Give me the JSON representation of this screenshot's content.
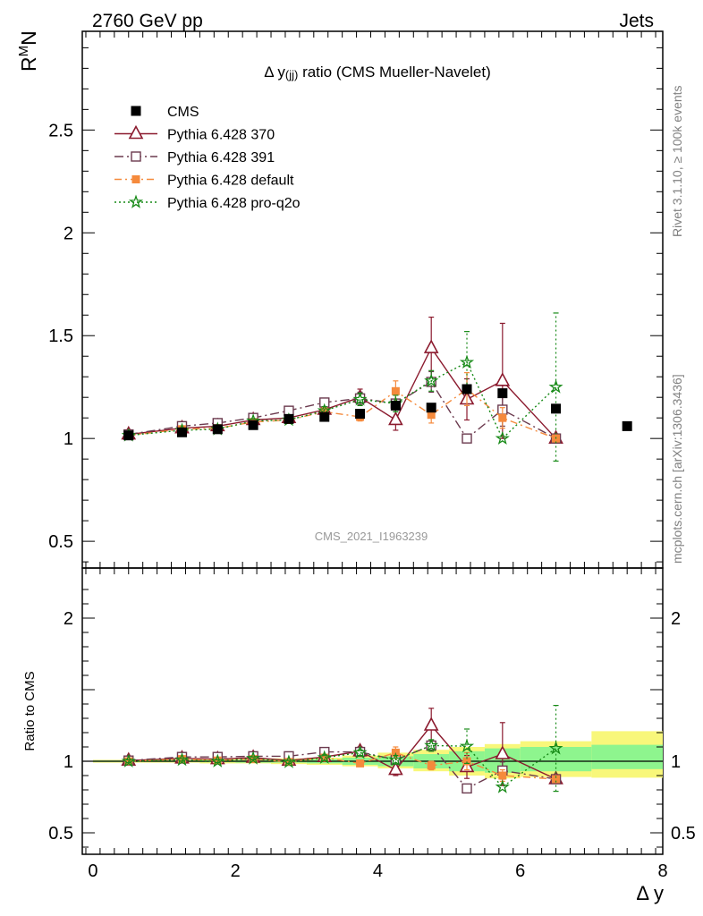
{
  "header": {
    "left": "2760 GeV pp",
    "right": "Jets"
  },
  "side_texts": {
    "rivet": "Rivet 3.1.10, ≥ 100k events",
    "mcplots": "mcplots.cern.ch [arXiv:1306.3436]"
  },
  "watermark": "CMS_2021_I1963239",
  "colors": {
    "cms": "#000000",
    "p370": "#8b1a2e",
    "p391": "#6b3a4e",
    "pdefault": "#f58a3c",
    "pq2o": "#178a17",
    "band_outer": "#f8f77a",
    "band_inner": "#8ef58e"
  },
  "chart_data": [
    {
      "type": "scatter",
      "panel": "main",
      "title": "Δ y(jj) ratio (CMS Mueller-Navelet)",
      "title_parts": {
        "a": "Δ y",
        "b": "(jj)",
        "c": " ratio (CMS Mueller-Navelet)"
      },
      "ylabel": "R",
      "ylabel_sup": "M",
      "ylabel_sub": "N",
      "xlim": [
        -0.15,
        8.0
      ],
      "ylim": [
        0.37,
        2.98
      ],
      "yticks": [
        0.5,
        1,
        1.5,
        2,
        2.5
      ],
      "ytick_labels": [
        "0.5",
        "1",
        "1.5",
        "2",
        "2.5"
      ],
      "legend_position": "top-left",
      "series": [
        {
          "name": "CMS",
          "style": "data",
          "x": [
            0.5,
            1.25,
            1.75,
            2.25,
            2.75,
            3.25,
            3.75,
            4.25,
            4.75,
            5.25,
            5.75,
            6.5,
            7.5
          ],
          "y": [
            1.015,
            1.03,
            1.045,
            1.065,
            1.095,
            1.105,
            1.12,
            1.16,
            1.15,
            1.24,
            1.22,
            1.145,
            1.06
          ]
        },
        {
          "name": "Pythia 6.428 370",
          "style": "p370",
          "x": [
            0.5,
            1.25,
            1.75,
            2.25,
            2.75,
            3.25,
            3.75,
            4.25,
            4.75,
            5.25,
            5.75,
            6.5
          ],
          "y": [
            1.02,
            1.05,
            1.06,
            1.09,
            1.1,
            1.14,
            1.2,
            1.09,
            1.44,
            1.19,
            1.28,
            1.0
          ],
          "err": [
            0.01,
            0.01,
            0.01,
            0.01,
            0.01,
            0.02,
            0.04,
            0.05,
            0.15,
            0.1,
            0.28,
            0.0
          ]
        },
        {
          "name": "Pythia 6.428 391",
          "style": "p391",
          "x": [
            0.5,
            1.25,
            1.75,
            2.25,
            2.75,
            3.25,
            3.75,
            4.25,
            4.75,
            5.25,
            5.75,
            6.5
          ],
          "y": [
            1.02,
            1.06,
            1.075,
            1.1,
            1.135,
            1.175,
            1.195,
            1.17,
            1.275,
            1.0,
            1.14,
            1.0
          ],
          "err": [
            0.01,
            0.01,
            0.01,
            0.01,
            0.01,
            0.02,
            0.03,
            0.04,
            0.05,
            0.0,
            0.08,
            0.0
          ]
        },
        {
          "name": "Pythia 6.428 default",
          "style": "pdefault",
          "x": [
            0.5,
            1.25,
            1.75,
            2.25,
            2.75,
            3.25,
            3.75,
            4.25,
            4.75,
            5.25,
            5.75,
            6.5
          ],
          "y": [
            1.015,
            1.045,
            1.05,
            1.08,
            1.09,
            1.13,
            1.105,
            1.23,
            1.115,
            1.24,
            1.1,
            1.0
          ],
          "err": [
            0.01,
            0.01,
            0.01,
            0.01,
            0.01,
            0.02,
            0.02,
            0.05,
            0.04,
            0.08,
            0.05,
            0.0
          ]
        },
        {
          "name": "Pythia 6.428 pro-q2o",
          "style": "pq2o",
          "x": [
            0.5,
            1.25,
            1.75,
            2.25,
            2.75,
            3.25,
            3.75,
            4.25,
            4.75,
            5.25,
            5.75,
            6.5
          ],
          "y": [
            1.015,
            1.04,
            1.045,
            1.085,
            1.09,
            1.135,
            1.19,
            1.17,
            1.28,
            1.37,
            1.0,
            1.25
          ],
          "err": [
            0.01,
            0.01,
            0.01,
            0.01,
            0.01,
            0.02,
            0.03,
            0.04,
            0.05,
            0.15,
            0.0,
            0.36
          ]
        }
      ]
    },
    {
      "type": "scatter",
      "panel": "ratio",
      "ylabel": "Ratio to CMS",
      "xlabel": "Δ y",
      "xlim": [
        -0.15,
        8.0
      ],
      "ylim": [
        0.35,
        2.35
      ],
      "xticks": [
        0,
        2,
        4,
        6,
        8
      ],
      "xtick_labels": [
        "0",
        "2",
        "4",
        "6",
        "8"
      ],
      "yticks": [
        0.5,
        1,
        2
      ],
      "ytick_labels": [
        "0.5",
        "1",
        "2"
      ],
      "bands": {
        "edges": [
          0,
          1,
          1.5,
          2,
          2.5,
          3,
          3.5,
          4,
          4.5,
          5,
          5.5,
          6,
          7,
          8
        ],
        "outer_lo": [
          0.99,
          0.99,
          0.985,
          0.985,
          0.98,
          0.975,
          0.965,
          0.95,
          0.93,
          0.9,
          0.88,
          0.89,
          0.885
        ],
        "outer_hi": [
          1.01,
          1.01,
          1.015,
          1.015,
          1.02,
          1.025,
          1.04,
          1.06,
          1.08,
          1.1,
          1.12,
          1.14,
          1.21
        ],
        "inner_lo": [
          0.995,
          0.995,
          0.993,
          0.99,
          0.99,
          0.985,
          0.975,
          0.965,
          0.95,
          0.93,
          0.92,
          0.93,
          0.945
        ],
        "inner_hi": [
          1.005,
          1.005,
          1.007,
          1.01,
          1.01,
          1.015,
          1.025,
          1.035,
          1.05,
          1.07,
          1.09,
          1.1,
          1.115
        ]
      },
      "series": [
        {
          "name": "Pythia 6.428 370",
          "style": "p370",
          "x": [
            0.5,
            1.25,
            1.75,
            2.25,
            2.75,
            3.25,
            3.75,
            4.25,
            4.75,
            5.25,
            5.75,
            6.5
          ],
          "y": [
            1.005,
            1.02,
            1.015,
            1.025,
            1.005,
            1.03,
            1.07,
            0.94,
            1.25,
            0.96,
            1.05,
            0.875
          ],
          "err": [
            0.01,
            0.01,
            0.01,
            0.01,
            0.01,
            0.02,
            0.03,
            0.04,
            0.12,
            0.08,
            0.22,
            0.0
          ]
        },
        {
          "name": "Pythia 6.428 391",
          "style": "p391",
          "x": [
            0.5,
            1.25,
            1.75,
            2.25,
            2.75,
            3.25,
            3.75,
            4.25,
            4.75,
            5.25,
            5.75,
            6.5
          ],
          "y": [
            1.005,
            1.03,
            1.03,
            1.035,
            1.035,
            1.065,
            1.065,
            1.01,
            1.11,
            0.81,
            0.935,
            0.875
          ],
          "err": [
            0.01,
            0.01,
            0.01,
            0.01,
            0.01,
            0.02,
            0.02,
            0.03,
            0.04,
            0.0,
            0.06,
            0.0
          ]
        },
        {
          "name": "Pythia 6.428 default",
          "style": "pdefault",
          "x": [
            0.5,
            1.25,
            1.75,
            2.25,
            2.75,
            3.25,
            3.75,
            4.25,
            4.75,
            5.25,
            5.75,
            6.5
          ],
          "y": [
            1.0,
            1.015,
            1.005,
            1.015,
            0.995,
            1.025,
            0.985,
            1.06,
            0.97,
            1.0,
            0.9,
            0.875
          ],
          "err": [
            0.01,
            0.01,
            0.01,
            0.01,
            0.01,
            0.02,
            0.02,
            0.04,
            0.03,
            0.06,
            0.04,
            0.0
          ]
        },
        {
          "name": "Pythia 6.428 pro-q2o",
          "style": "pq2o",
          "x": [
            0.5,
            1.25,
            1.75,
            2.25,
            2.75,
            3.25,
            3.75,
            4.25,
            4.75,
            5.25,
            5.75,
            6.5
          ],
          "y": [
            1.0,
            1.01,
            1.0,
            1.02,
            0.995,
            1.025,
            1.06,
            1.01,
            1.11,
            1.105,
            0.82,
            1.09
          ],
          "err": [
            0.01,
            0.01,
            0.01,
            0.01,
            0.01,
            0.02,
            0.02,
            0.03,
            0.04,
            0.12,
            0.0,
            0.3
          ]
        }
      ]
    }
  ]
}
